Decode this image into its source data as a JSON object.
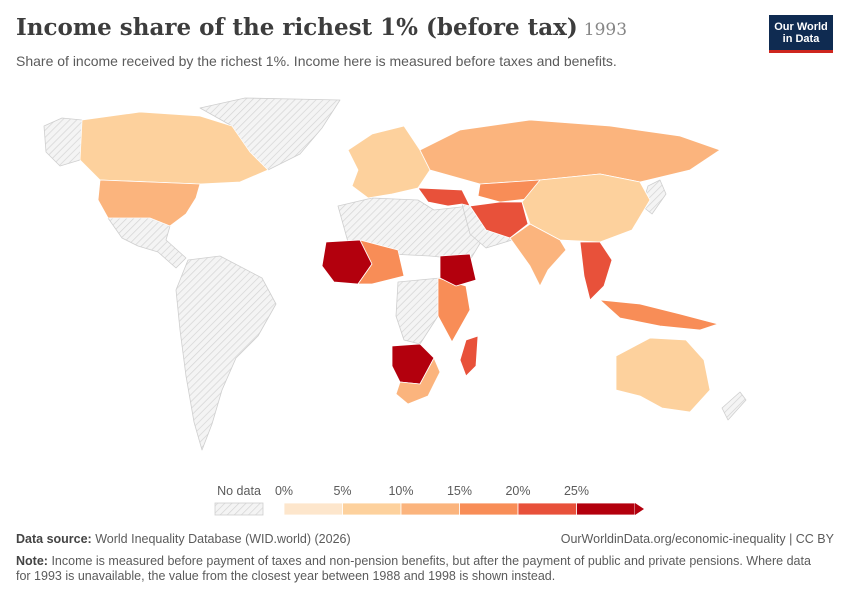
{
  "header": {
    "title": "Income share of the richest 1% (before tax)",
    "year": "1993",
    "subtitle": "Share of income received by the richest 1%. Income here is measured before taxes and benefits."
  },
  "logo": {
    "line1": "Our World",
    "line2": "in Data"
  },
  "legend": {
    "no_data_label": "No data",
    "bins": [
      {
        "label": "0%",
        "color": "#fde6cc"
      },
      {
        "label": "5%",
        "color": "#fdd19d"
      },
      {
        "label": "10%",
        "color": "#fbb47d"
      },
      {
        "label": "15%",
        "color": "#f88d57"
      },
      {
        "label": "20%",
        "color": "#e8513a"
      },
      {
        "label": "25%",
        "color": "#b3000d"
      }
    ]
  },
  "colors": {
    "no_data": "#f2f2f2",
    "border": "#ffffff",
    "hatch": "#d6d6d6"
  },
  "regions": [
    {
      "id": "canada",
      "color": "#fdd19d"
    },
    {
      "id": "usa",
      "color": "#fbb47d"
    },
    {
      "id": "russia",
      "color": "#fbb47d"
    },
    {
      "id": "china",
      "color": "#fdd19d"
    },
    {
      "id": "europe",
      "color": "#fdd19d"
    },
    {
      "id": "middle-east",
      "color": "#e8513a"
    },
    {
      "id": "iran",
      "color": "#e8513a"
    },
    {
      "id": "india",
      "color": "#fbb47d"
    },
    {
      "id": "southeast-asia",
      "color": "#e8513a"
    },
    {
      "id": "indonesia",
      "color": "#f88d57"
    },
    {
      "id": "west-africa",
      "color": "#b3000d"
    },
    {
      "id": "southern-africa",
      "color": "#b3000d"
    },
    {
      "id": "ethiopia",
      "color": "#b3000d"
    },
    {
      "id": "australia",
      "color": "#fdd19d"
    }
  ],
  "footer": {
    "source_label": "Data source:",
    "source_text": "World Inequality Database (WID.world) (2026)",
    "url": "OurWorldinData.org/economic-inequality | CC BY",
    "note_label": "Note:",
    "note_text": "Income is measured before payment of taxes and non-pension benefits, but after the payment of public and private pensions. Where data for 1993 is unavailable, the value from the closest year between 1988 and 1998 is shown instead."
  }
}
